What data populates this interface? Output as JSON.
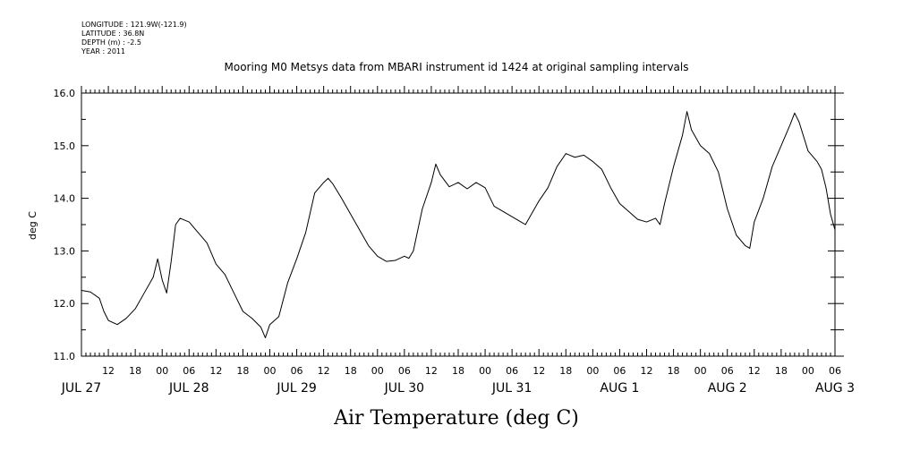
{
  "header": {
    "meta_lines": [
      "LONGITUDE : 121.9W(-121.9)",
      "LATITUDE : 36.8N",
      "DEPTH (m) : -2.5",
      "YEAR : 2011"
    ],
    "title": "Mooring M0 Metsys data from MBARI instrument id 1424 at original sampling intervals"
  },
  "chart_data": {
    "type": "line",
    "title": "Mooring M0 Metsys data from MBARI instrument id 1424 at original sampling intervals",
    "xlabel": "Air Temperature (deg C)",
    "ylabel": "deg C",
    "ylim": [
      11.0,
      16.0
    ],
    "yticks": [
      "11.0",
      "12.0",
      "13.0",
      "14.0",
      "15.0",
      "16.0"
    ],
    "xlim_hours_from_jul27_00": [
      6,
      174
    ],
    "hour_tick_labels": [
      "12",
      "18",
      "00",
      "06",
      "12",
      "18",
      "00",
      "06",
      "12",
      "18",
      "00",
      "06",
      "12",
      "18",
      "00",
      "06",
      "12",
      "18",
      "00",
      "06",
      "12",
      "18",
      "00",
      "06",
      "12",
      "18",
      "00",
      "06"
    ],
    "date_labels": [
      "JUL 27",
      "JUL 28",
      "JUL 29",
      "JUL 30",
      "JUL 31",
      "AUG 1",
      "AUG 2",
      "AUG 3"
    ],
    "series": [
      {
        "values": [
          [
            6,
            12.25
          ],
          [
            8,
            12.22
          ],
          [
            10,
            12.1
          ],
          [
            11,
            11.85
          ],
          [
            12,
            11.68
          ],
          [
            14,
            11.6
          ],
          [
            16,
            11.72
          ],
          [
            18,
            11.9
          ],
          [
            20,
            12.2
          ],
          [
            22,
            12.5
          ],
          [
            23,
            12.85
          ],
          [
            24,
            12.45
          ],
          [
            25,
            12.2
          ],
          [
            26,
            12.8
          ],
          [
            27,
            13.5
          ],
          [
            28,
            13.62
          ],
          [
            30,
            13.55
          ],
          [
            32,
            13.35
          ],
          [
            34,
            13.15
          ],
          [
            36,
            12.75
          ],
          [
            38,
            12.55
          ],
          [
            40,
            12.2
          ],
          [
            42,
            11.85
          ],
          [
            44,
            11.72
          ],
          [
            46,
            11.55
          ],
          [
            47,
            11.35
          ],
          [
            48,
            11.6
          ],
          [
            50,
            11.75
          ],
          [
            52,
            12.4
          ],
          [
            54,
            12.85
          ],
          [
            56,
            13.35
          ],
          [
            58,
            14.1
          ],
          [
            60,
            14.3
          ],
          [
            61,
            14.38
          ],
          [
            62,
            14.28
          ],
          [
            64,
            14.0
          ],
          [
            66,
            13.7
          ],
          [
            68,
            13.4
          ],
          [
            70,
            13.1
          ],
          [
            72,
            12.9
          ],
          [
            74,
            12.8
          ],
          [
            76,
            12.82
          ],
          [
            78,
            12.9
          ],
          [
            79,
            12.86
          ],
          [
            80,
            13.0
          ],
          [
            82,
            13.8
          ],
          [
            84,
            14.3
          ],
          [
            85,
            14.65
          ],
          [
            86,
            14.45
          ],
          [
            88,
            14.22
          ],
          [
            90,
            14.3
          ],
          [
            92,
            14.18
          ],
          [
            94,
            14.3
          ],
          [
            96,
            14.2
          ],
          [
            98,
            13.85
          ],
          [
            100,
            13.75
          ],
          [
            102,
            13.65
          ],
          [
            104,
            13.55
          ],
          [
            105,
            13.5
          ],
          [
            106,
            13.65
          ],
          [
            108,
            13.95
          ],
          [
            110,
            14.2
          ],
          [
            112,
            14.6
          ],
          [
            114,
            14.85
          ],
          [
            116,
            14.78
          ],
          [
            118,
            14.82
          ],
          [
            120,
            14.7
          ],
          [
            122,
            14.55
          ],
          [
            124,
            14.2
          ],
          [
            126,
            13.9
          ],
          [
            128,
            13.75
          ],
          [
            130,
            13.6
          ],
          [
            132,
            13.55
          ],
          [
            134,
            13.62
          ],
          [
            135,
            13.5
          ],
          [
            136,
            13.9
          ],
          [
            138,
            14.6
          ],
          [
            140,
            15.2
          ],
          [
            141,
            15.65
          ],
          [
            142,
            15.3
          ],
          [
            144,
            15.0
          ],
          [
            146,
            14.85
          ],
          [
            148,
            14.5
          ],
          [
            150,
            13.8
          ],
          [
            152,
            13.3
          ],
          [
            154,
            13.1
          ],
          [
            155,
            13.05
          ],
          [
            156,
            13.55
          ],
          [
            158,
            14.0
          ],
          [
            160,
            14.6
          ],
          [
            162,
            15.0
          ],
          [
            164,
            15.4
          ],
          [
            165,
            15.62
          ],
          [
            166,
            15.45
          ],
          [
            168,
            14.9
          ],
          [
            170,
            14.7
          ],
          [
            171,
            14.55
          ],
          [
            172,
            14.2
          ],
          [
            173,
            13.7
          ],
          [
            174,
            13.4
          ]
        ]
      }
    ]
  }
}
